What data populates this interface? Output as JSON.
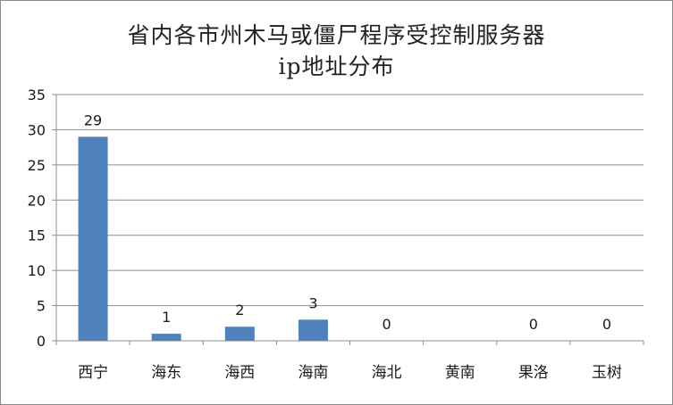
{
  "chart_data": {
    "type": "bar",
    "title": [
      "省内各市州木马或僵尸程序受控制服务器",
      "ip地址分布"
    ],
    "xlabel": "",
    "ylabel": "",
    "categories": [
      "西宁",
      "海东",
      "海西",
      "海南",
      "海北",
      "黄南",
      "果洛",
      "玉树"
    ],
    "values": [
      29,
      1,
      2,
      3,
      0,
      null,
      0,
      0
    ],
    "data_labels": [
      "29",
      "1",
      "2",
      "3",
      "0",
      "",
      "0",
      "0"
    ],
    "ylim": [
      0,
      35
    ],
    "yticks": [
      0,
      5,
      10,
      15,
      20,
      25,
      30,
      35
    ],
    "grid": true,
    "legend": "none",
    "colors": {
      "bar": "#4f81bd",
      "grid": "#8c8c8c",
      "axis": "#8c8c8c"
    }
  }
}
